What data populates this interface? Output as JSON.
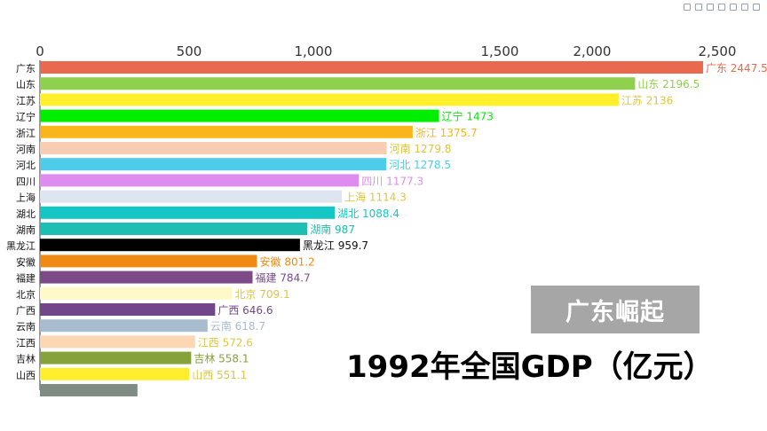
{
  "toolbar": {
    "icons": [
      "save-icon",
      "zoom-icon",
      "restore-icon",
      "data-view-icon",
      "bar-icon",
      "line-icon",
      "download-icon"
    ]
  },
  "overlay": {
    "badge": "广东崛起",
    "caption": "1992年全国GDP（亿元）"
  },
  "chart_data": {
    "type": "bar",
    "orientation": "horizontal",
    "title": "1992年全国GDP（亿元）",
    "x_ticks": [
      "0",
      "500",
      "1,000",
      "1,500",
      "2,000",
      "2,500"
    ],
    "rows": [
      {
        "label": "广东",
        "value": 2447.5,
        "value_text": "广东 2447.5",
        "color": "#e8694d"
      },
      {
        "label": "山东",
        "value": 2196.5,
        "value_text": "山东 2196.5",
        "color": "#8fd14f"
      },
      {
        "label": "江苏",
        "value": 2136,
        "value_text": "江苏 2136",
        "color": "#fff02b"
      },
      {
        "label": "辽宁",
        "value": 1473,
        "value_text": "辽宁 1473",
        "color": "#00ef00"
      },
      {
        "label": "浙江",
        "value": 1375.7,
        "value_text": "浙江 1375.7",
        "color": "#f9b51a"
      },
      {
        "label": "河南",
        "value": 1279.8,
        "value_text": "河南 1279.8",
        "color": "#f8cdb3"
      },
      {
        "label": "河北",
        "value": 1278.5,
        "value_text": "河北 1278.5",
        "color": "#4fcce9"
      },
      {
        "label": "四川",
        "value": 1177.3,
        "value_text": "四川 1177.3",
        "color": "#de8cf0"
      },
      {
        "label": "上海",
        "value": 1114.3,
        "value_text": "上海 1114.3",
        "color": "#dfe5f0"
      },
      {
        "label": "湖北",
        "value": 1088.4,
        "value_text": "湖北 1088.4",
        "color": "#14c7c4"
      },
      {
        "label": "湖南",
        "value": 987,
        "value_text": "湖南 987",
        "color": "#1dbfb4"
      },
      {
        "label": "黑龙江",
        "value": 959.7,
        "value_text": "黑龙江 959.7",
        "color": "#000000"
      },
      {
        "label": "安徽",
        "value": 801.2,
        "value_text": "安徽 801.2",
        "color": "#f08a14"
      },
      {
        "label": "福建",
        "value": 784.7,
        "value_text": "福建 784.7",
        "color": "#7b4a87"
      },
      {
        "label": "北京",
        "value": 709.1,
        "value_text": "北京 709.1",
        "color": "#fff8c8"
      },
      {
        "label": "广西",
        "value": 646.6,
        "value_text": "广西 646.6",
        "color": "#714789"
      },
      {
        "label": "云南",
        "value": 618.7,
        "value_text": "云南 618.7",
        "color": "#a9bccf"
      },
      {
        "label": "江西",
        "value": 572.6,
        "value_text": "江西 572.6",
        "color": "#fdd6b4"
      },
      {
        "label": "吉林",
        "value": 558.1,
        "value_text": "吉林 558.1",
        "color": "#86a23b"
      },
      {
        "label": "山西",
        "value": 551.1,
        "value_text": "山西 551.1",
        "color": "#ffee2e"
      },
      {
        "label": "",
        "value": 360,
        "value_text": "",
        "color": "#7f8c84"
      }
    ]
  }
}
